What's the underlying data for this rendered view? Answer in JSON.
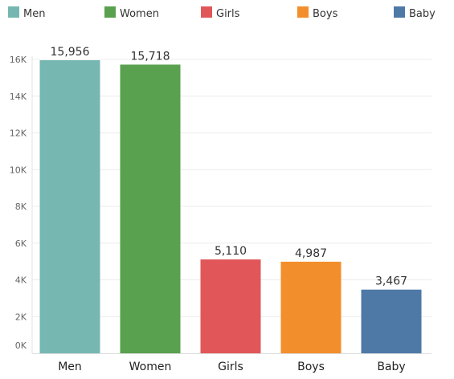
{
  "chart_data": {
    "type": "bar",
    "categories": [
      "Men",
      "Women",
      "Girls",
      "Boys",
      "Baby"
    ],
    "values": [
      15956,
      15718,
      5110,
      4987,
      3467
    ],
    "value_labels": [
      "15,956",
      "15,718",
      "5,110",
      "4,987",
      "3,467"
    ],
    "colors": [
      "#76b7b2",
      "#59a14f",
      "#e15759",
      "#f28e2b",
      "#4e79a7"
    ],
    "legend": {
      "placement": "top",
      "entries": [
        {
          "label": "Men",
          "color": "#76b7b2"
        },
        {
          "label": "Women",
          "color": "#59a14f"
        },
        {
          "label": "Girls",
          "color": "#e15759"
        },
        {
          "label": "Boys",
          "color": "#f28e2b"
        },
        {
          "label": "Baby",
          "color": "#4e79a7"
        }
      ]
    },
    "y_ticks": [
      0,
      2000,
      4000,
      6000,
      8000,
      10000,
      12000,
      14000,
      16000
    ],
    "y_tick_labels": [
      "0K",
      "2K",
      "4K",
      "6K",
      "8K",
      "10K",
      "12K",
      "14K",
      "16K"
    ],
    "ylim": [
      0,
      16000
    ],
    "grid": true,
    "title": "",
    "xlabel": "",
    "ylabel": ""
  }
}
